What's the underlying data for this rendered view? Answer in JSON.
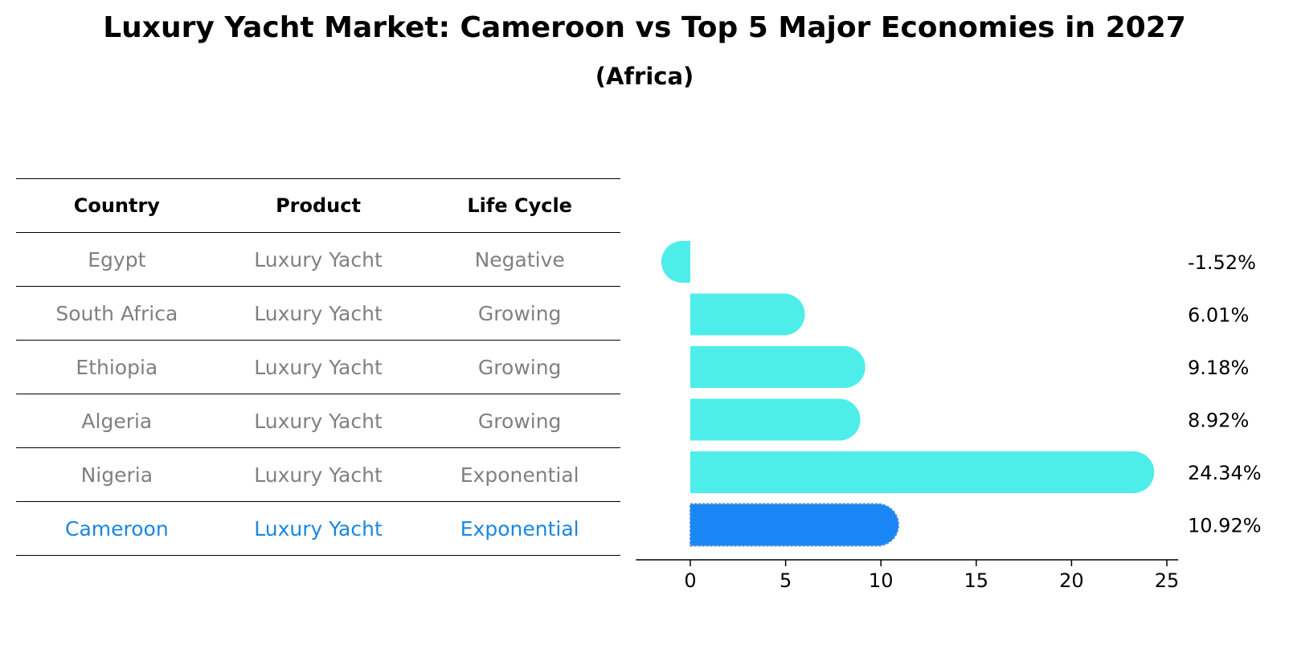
{
  "title": "Luxury Yacht Market: Cameroon vs Top 5 Major Economies in 2027",
  "subtitle": "(Africa)",
  "table": {
    "headers": [
      "Country",
      "Product",
      "Life Cycle"
    ],
    "rows": [
      {
        "country": "Egypt",
        "product": "Luxury Yacht",
        "life_cycle": "Negative"
      },
      {
        "country": "South Africa",
        "product": "Luxury Yacht",
        "life_cycle": "Growing"
      },
      {
        "country": "Ethiopia",
        "product": "Luxury Yacht",
        "life_cycle": "Growing"
      },
      {
        "country": "Algeria",
        "product": "Luxury Yacht",
        "life_cycle": "Growing"
      },
      {
        "country": "Nigeria",
        "product": "Luxury Yacht",
        "life_cycle": "Exponential"
      },
      {
        "country": "Cameroon",
        "product": "Luxury Yacht",
        "life_cycle": "Exponential"
      }
    ]
  },
  "chart_data": {
    "type": "bar",
    "orientation": "horizontal",
    "categories": [
      "Egypt",
      "South Africa",
      "Ethiopia",
      "Algeria",
      "Nigeria",
      "Cameroon"
    ],
    "values": [
      -1.52,
      6.01,
      9.18,
      8.92,
      24.34,
      10.92
    ],
    "value_labels": [
      "-1.52%",
      "6.01%",
      "9.18%",
      "8.92%",
      "24.34%",
      "10.92%"
    ],
    "xticks": [
      0,
      5,
      10,
      15,
      20,
      25
    ],
    "xlim": [
      -2.85,
      25.6
    ],
    "highlight": "Cameroon",
    "colors": {
      "default": "#4deeea",
      "highlight": "#1a86f5"
    }
  }
}
